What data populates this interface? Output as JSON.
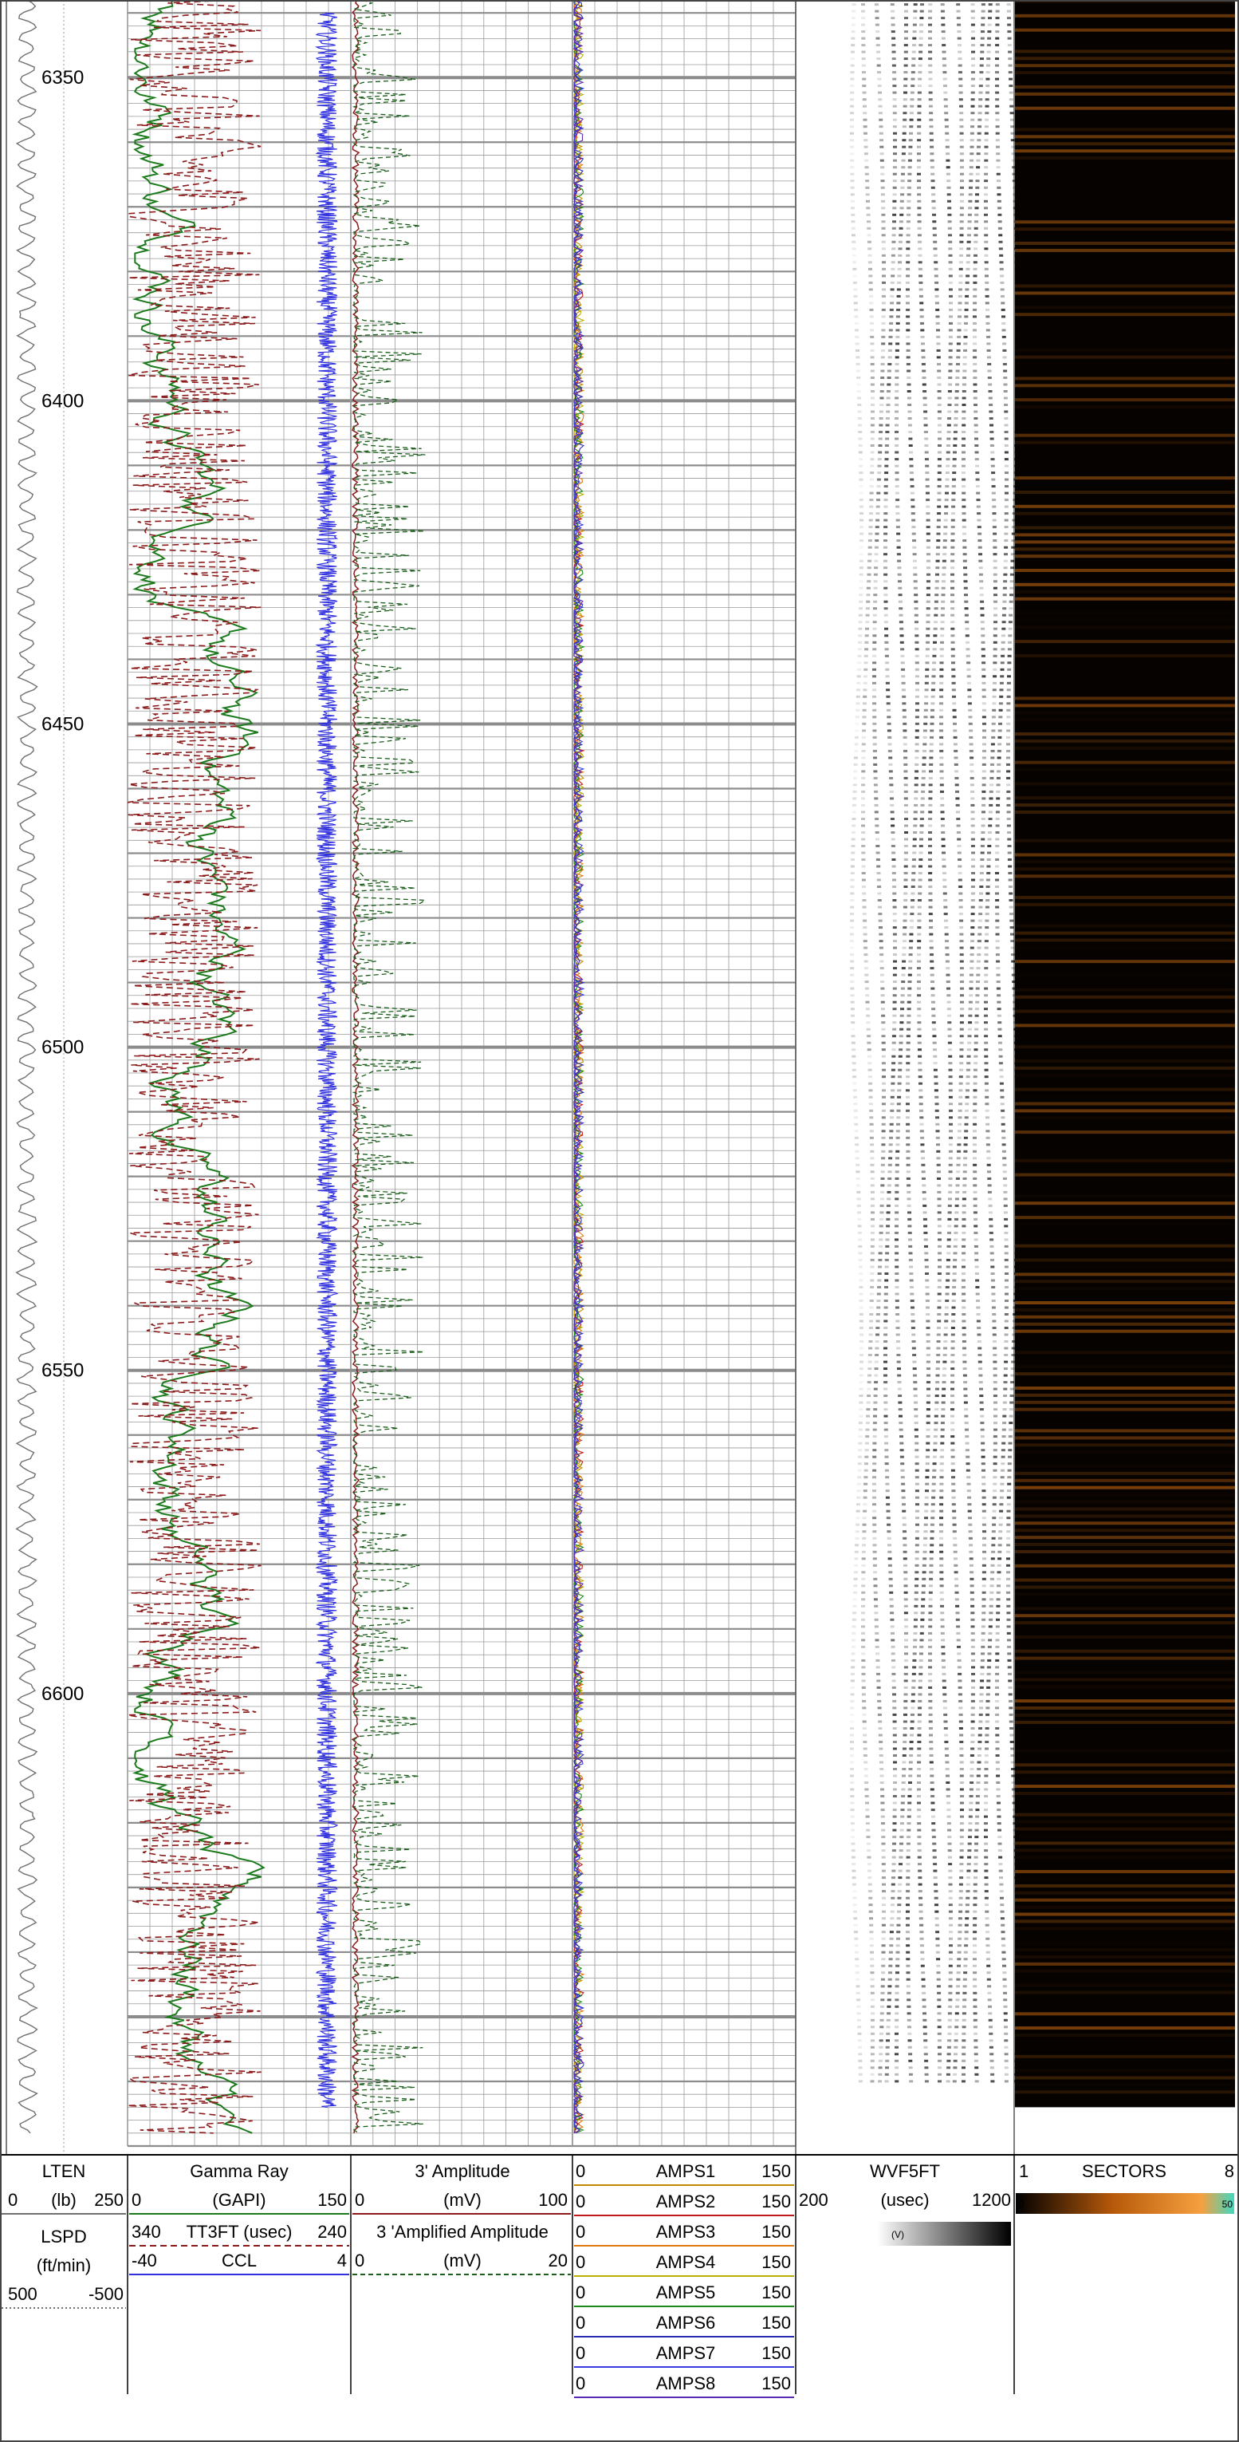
{
  "chart_data": {
    "type": "line",
    "title": "",
    "depth_axis": {
      "unit": "",
      "range": [
        6338,
        6670
      ],
      "tick_labels": [
        "6350",
        "6400",
        "6450",
        "6500",
        "6550",
        "6600"
      ]
    },
    "tracks": [
      {
        "id": "depth",
        "curves": [
          {
            "name": "LTEN",
            "unit": "(lb)",
            "scale": [
              0,
              250
            ],
            "color": "#707070",
            "style": "solid"
          },
          {
            "name": "LSPD",
            "unit": "(ft/min)",
            "scale": [
              500,
              -500
            ],
            "color": "#707070",
            "style": "dotted"
          }
        ]
      },
      {
        "id": "track1",
        "curves": [
          {
            "name": "Gamma Ray",
            "unit": "(GAPI)",
            "scale": [
              0,
              150
            ],
            "color": "#1b7a1b",
            "style": "solid"
          },
          {
            "name": "TT3FT (usec)",
            "unit": "",
            "scale": [
              340,
              240
            ],
            "color": "#8b1a1a",
            "style": "dashed"
          },
          {
            "name": "CCL",
            "unit": "",
            "scale": [
              -40,
              4
            ],
            "color": "#3030e0",
            "style": "solid"
          }
        ]
      },
      {
        "id": "track2",
        "curves": [
          {
            "name": "3' Amplitude",
            "unit": "(mV)",
            "scale": [
              0,
              100
            ],
            "color": "#8b1a1a",
            "style": "solid"
          },
          {
            "name": "3 'Amplified Amplitude",
            "unit": "(mV)",
            "scale": [
              0,
              20
            ],
            "color": "#1b5e1b",
            "style": "dashed"
          }
        ]
      },
      {
        "id": "track3",
        "curves": [
          {
            "name": "AMPS1",
            "scale": [
              0,
              150
            ],
            "color": "#c08a00"
          },
          {
            "name": "AMPS2",
            "scale": [
              0,
              150
            ],
            "color": "#c01a1a"
          },
          {
            "name": "AMPS3",
            "scale": [
              0,
              150
            ],
            "color": "#e07a10"
          },
          {
            "name": "AMPS4",
            "scale": [
              0,
              150
            ],
            "color": "#b8b000"
          },
          {
            "name": "AMPS5",
            "scale": [
              0,
              150
            ],
            "color": "#1a8a1a"
          },
          {
            "name": "AMPS6",
            "scale": [
              0,
              150
            ],
            "color": "#2a2ab0"
          },
          {
            "name": "AMPS7",
            "scale": [
              0,
              150
            ],
            "color": "#3a3ae0"
          },
          {
            "name": "AMPS8",
            "scale": [
              0,
              150
            ],
            "color": "#5a2ab0"
          }
        ]
      },
      {
        "id": "vdl",
        "curves": [
          {
            "name": "WVF5FT",
            "unit": "(usec)",
            "scale": [
              200,
              1200
            ],
            "sub_label": "(V)"
          }
        ]
      },
      {
        "id": "sectors",
        "curves": [
          {
            "name": "SECTORS",
            "scale": [
              1,
              8
            ],
            "colorbar_min": "0",
            "colorbar_max": "50"
          }
        ]
      }
    ],
    "grid": true,
    "legend": "bottom"
  }
}
